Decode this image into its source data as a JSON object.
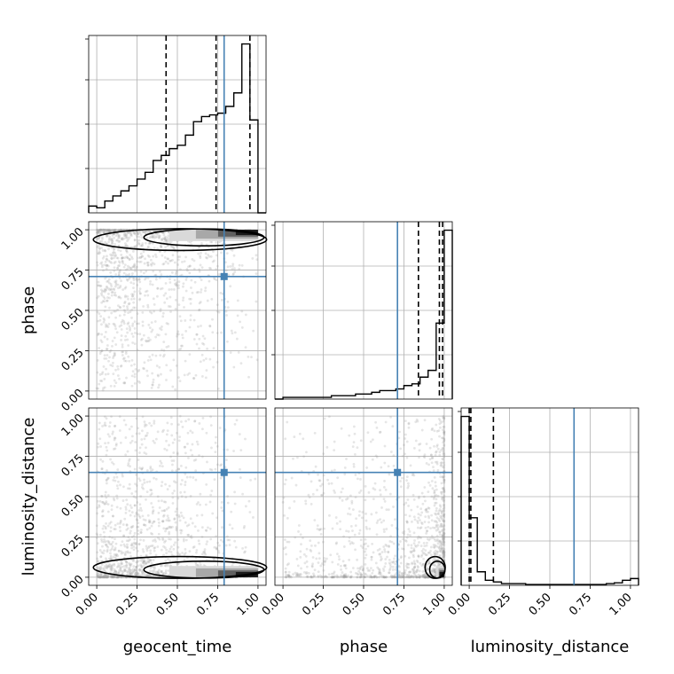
{
  "chart_data": {
    "type": "corner",
    "parameters": [
      "geocent_time",
      "phase",
      "luminosity_distance"
    ],
    "axis_range": [
      -0.05,
      1.05
    ],
    "ticks": [
      0.0,
      0.25,
      0.5,
      0.75,
      1.0
    ],
    "tick_labels": [
      "0.00",
      "0.25",
      "0.50",
      "0.75",
      "1.00"
    ],
    "grid": true,
    "colors": {
      "truth": "#4682b4",
      "lines": "#000000",
      "samples": "#9a9a9a"
    },
    "truths": {
      "geocent_time": 0.79,
      "phase": 0.71,
      "luminosity_distance": 0.65
    },
    "quantiles": {
      "geocent_time": [
        0.43,
        0.74,
        0.95
      ],
      "phase": [
        0.84,
        0.97,
        0.99
      ],
      "luminosity_distance": [
        0.0,
        0.01,
        0.15
      ]
    },
    "histograms": {
      "geocent_time": {
        "bin_edges": [
          -0.05,
          0.0,
          0.05,
          0.1,
          0.15,
          0.2,
          0.25,
          0.3,
          0.35,
          0.4,
          0.45,
          0.5,
          0.55,
          0.6,
          0.65,
          0.7,
          0.75,
          0.8,
          0.85,
          0.9,
          0.95,
          1.0,
          1.05
        ],
        "counts": [
          4,
          3,
          7,
          10,
          13,
          16,
          20,
          24,
          31,
          34,
          38,
          40,
          46,
          54,
          57,
          58,
          59,
          63,
          71,
          100,
          55,
          0
        ]
      },
      "phase": {
        "bin_edges": [
          -0.05,
          0.0,
          0.05,
          0.1,
          0.15,
          0.2,
          0.25,
          0.3,
          0.35,
          0.4,
          0.45,
          0.5,
          0.55,
          0.6,
          0.65,
          0.7,
          0.75,
          0.8,
          0.85,
          0.9,
          0.95,
          1.0,
          1.05
        ],
        "counts": [
          0,
          1,
          1,
          1,
          1,
          1,
          1,
          2,
          2,
          2,
          3,
          3,
          4,
          5,
          5,
          6,
          8,
          9,
          13,
          17,
          45,
          100
        ]
      },
      "luminosity_distance": {
        "bin_edges": [
          -0.05,
          0.0,
          0.05,
          0.1,
          0.15,
          0.2,
          0.25,
          0.3,
          0.35,
          0.4,
          0.45,
          0.5,
          0.55,
          0.6,
          0.65,
          0.7,
          0.75,
          0.8,
          0.85,
          0.9,
          0.95,
          1.0,
          1.05
        ],
        "counts": [
          100,
          40,
          8,
          3,
          2,
          1,
          1,
          1,
          0.5,
          0.5,
          0.5,
          0.5,
          0.5,
          0.5,
          0.5,
          0.5,
          0.5,
          0.5,
          1,
          1.5,
          3,
          4
        ]
      }
    }
  }
}
